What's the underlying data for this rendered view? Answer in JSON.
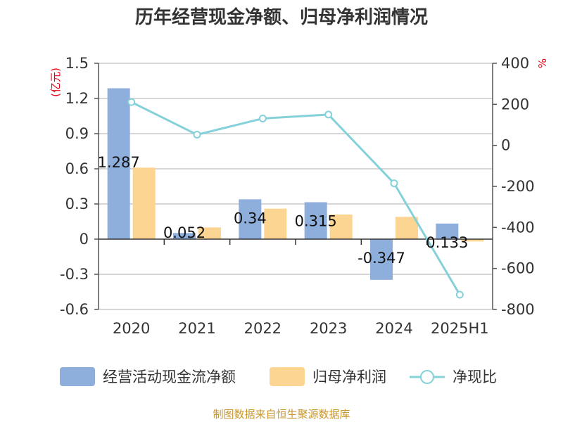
{
  "chart_data": {
    "type": "bar+line",
    "title": "历年经营现金净额、归母净利润情况",
    "categories": [
      "2020",
      "2021",
      "2022",
      "2023",
      "2024",
      "2025H1"
    ],
    "series": [
      {
        "name": "经营活动现金流净额",
        "type": "bar",
        "axis": "left",
        "color": "#8eaedc",
        "values": [
          1.287,
          0.052,
          0.34,
          0.315,
          -0.347,
          0.133
        ]
      },
      {
        "name": "归母净利润",
        "type": "bar",
        "axis": "left",
        "color": "#fdd592",
        "values": [
          0.61,
          0.1,
          0.26,
          0.21,
          0.19,
          -0.02
        ]
      },
      {
        "name": "净现比",
        "type": "line",
        "axis": "right",
        "color": "#85d1d9",
        "values": [
          211,
          52,
          131,
          150,
          -185,
          -728
        ]
      }
    ],
    "data_labels": [
      "1.287",
      "0.052",
      "0.34",
      "0.315",
      "-0.347",
      "0.133"
    ],
    "y_left": {
      "unit": "(亿元)",
      "ylim": [
        -0.6,
        1.5
      ],
      "ticks": [
        "1.5",
        "1.2",
        "0.9",
        "0.6",
        "0.3",
        "0",
        "-0.3",
        "-0.6"
      ]
    },
    "y_right": {
      "unit": "%",
      "ylim": [
        -800,
        400
      ],
      "ticks": [
        "400",
        "200",
        "0",
        "-200",
        "-400",
        "-600",
        "-800"
      ]
    },
    "grid": true,
    "legend_position": "bottom"
  },
  "source_text": "制图数据来自恒生聚源数据库"
}
